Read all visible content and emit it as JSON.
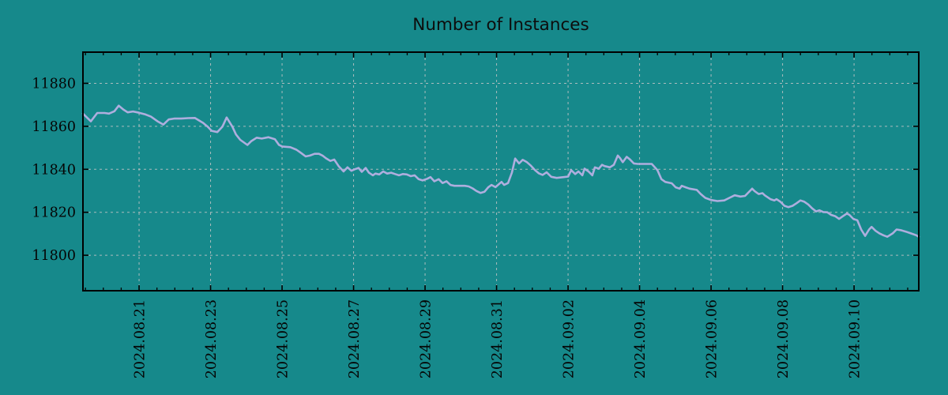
{
  "chart_data": {
    "type": "line",
    "title": "Number of Instances",
    "background_color": "#16898b",
    "line_color": "#aeaede",
    "grid_color": "#c6c6c6",
    "axis_color": "#000000",
    "text_color": "#050505",
    "legend": "none",
    "grid": "dashed, both axes",
    "x_axis": {
      "tick_labels": [
        "2024.08.21",
        "2024.08.23",
        "2024.08.25",
        "2024.08.27",
        "2024.08.29",
        "2024.08.31",
        "2024.09.02",
        "2024.09.04",
        "2024.09.06",
        "2024.09.08",
        "2024.09.10"
      ],
      "tick_positions_days": [
        1.57,
        3.57,
        5.57,
        7.57,
        9.57,
        11.57,
        13.57,
        15.57,
        17.57,
        19.57,
        21.57
      ],
      "minor_tick_step_days": 0.5,
      "minor_tick_start_day": 0.07,
      "range_days": [
        0,
        23.38
      ],
      "label_rotation_deg": -90
    },
    "y_axis": {
      "ticks": [
        11800,
        11820,
        11840,
        11860,
        11880
      ],
      "range": [
        11783.5,
        11894.5
      ]
    },
    "series": [
      {
        "name": "instances",
        "points": [
          [
            0.0,
            11865.9
          ],
          [
            0.22,
            11862.3
          ],
          [
            0.4,
            11866.2
          ],
          [
            0.6,
            11866.2
          ],
          [
            0.73,
            11865.9
          ],
          [
            0.88,
            11867.0
          ],
          [
            1.0,
            11869.6
          ],
          [
            1.13,
            11867.8
          ],
          [
            1.25,
            11866.5
          ],
          [
            1.4,
            11866.9
          ],
          [
            1.57,
            11866.3
          ],
          [
            1.75,
            11865.5
          ],
          [
            1.9,
            11864.5
          ],
          [
            2.1,
            11862.2
          ],
          [
            2.25,
            11860.8
          ],
          [
            2.4,
            11863.2
          ],
          [
            2.55,
            11863.6
          ],
          [
            2.75,
            11863.6
          ],
          [
            2.95,
            11863.8
          ],
          [
            3.13,
            11863.9
          ],
          [
            3.36,
            11861.6
          ],
          [
            3.49,
            11859.8
          ],
          [
            3.6,
            11857.9
          ],
          [
            3.76,
            11857.3
          ],
          [
            3.9,
            11859.8
          ],
          [
            4.02,
            11864.1
          ],
          [
            4.18,
            11859.8
          ],
          [
            4.28,
            11856.2
          ],
          [
            4.4,
            11853.7
          ],
          [
            4.6,
            11851.3
          ],
          [
            4.71,
            11853.1
          ],
          [
            4.86,
            11854.7
          ],
          [
            5.0,
            11854.3
          ],
          [
            5.19,
            11854.9
          ],
          [
            5.37,
            11854.0
          ],
          [
            5.48,
            11851.4
          ],
          [
            5.57,
            11850.6
          ],
          [
            5.8,
            11850.3
          ],
          [
            5.97,
            11849.1
          ],
          [
            6.1,
            11847.6
          ],
          [
            6.23,
            11846.0
          ],
          [
            6.35,
            11846.4
          ],
          [
            6.48,
            11847.2
          ],
          [
            6.6,
            11847.2
          ],
          [
            6.7,
            11846.4
          ],
          [
            6.8,
            11845.1
          ],
          [
            6.92,
            11843.9
          ],
          [
            7.03,
            11844.5
          ],
          [
            7.15,
            11841.5
          ],
          [
            7.29,
            11839.0
          ],
          [
            7.4,
            11840.9
          ],
          [
            7.51,
            11839.3
          ],
          [
            7.6,
            11840.0
          ],
          [
            7.71,
            11840.6
          ],
          [
            7.8,
            11838.8
          ],
          [
            7.91,
            11840.6
          ],
          [
            8.0,
            11838.4
          ],
          [
            8.11,
            11837.2
          ],
          [
            8.18,
            11838.0
          ],
          [
            8.29,
            11837.6
          ],
          [
            8.4,
            11839.0
          ],
          [
            8.51,
            11838.0
          ],
          [
            8.62,
            11838.4
          ],
          [
            8.73,
            11837.8
          ],
          [
            8.84,
            11837.2
          ],
          [
            8.95,
            11837.8
          ],
          [
            9.06,
            11837.6
          ],
          [
            9.17,
            11836.8
          ],
          [
            9.28,
            11837.2
          ],
          [
            9.39,
            11835.4
          ],
          [
            9.5,
            11834.8
          ],
          [
            9.63,
            11835.6
          ],
          [
            9.72,
            11836.4
          ],
          [
            9.83,
            11834.4
          ],
          [
            9.95,
            11835.4
          ],
          [
            10.06,
            11833.6
          ],
          [
            10.17,
            11834.4
          ],
          [
            10.28,
            11832.7
          ],
          [
            10.39,
            11832.3
          ],
          [
            10.55,
            11832.3
          ],
          [
            10.68,
            11832.3
          ],
          [
            10.79,
            11832.0
          ],
          [
            10.9,
            11831.1
          ],
          [
            11.01,
            11829.9
          ],
          [
            11.12,
            11829.0
          ],
          [
            11.23,
            11829.5
          ],
          [
            11.34,
            11831.7
          ],
          [
            11.43,
            11832.7
          ],
          [
            11.54,
            11831.7
          ],
          [
            11.63,
            11833.0
          ],
          [
            11.71,
            11834.1
          ],
          [
            11.78,
            11832.7
          ],
          [
            11.89,
            11833.6
          ],
          [
            12.0,
            11838.5
          ],
          [
            12.09,
            11845.0
          ],
          [
            12.2,
            11842.7
          ],
          [
            12.3,
            11844.4
          ],
          [
            12.42,
            11843.3
          ],
          [
            12.53,
            11841.7
          ],
          [
            12.64,
            11839.7
          ],
          [
            12.75,
            11838.1
          ],
          [
            12.86,
            11837.4
          ],
          [
            12.97,
            11838.6
          ],
          [
            13.1,
            11836.5
          ],
          [
            13.25,
            11836.0
          ],
          [
            13.42,
            11836.3
          ],
          [
            13.57,
            11836.6
          ],
          [
            13.66,
            11839.6
          ],
          [
            13.77,
            11837.8
          ],
          [
            13.86,
            11839.0
          ],
          [
            13.97,
            11837.2
          ],
          [
            14.03,
            11840.3
          ],
          [
            14.14,
            11839.0
          ],
          [
            14.25,
            11837.2
          ],
          [
            14.32,
            11840.9
          ],
          [
            14.43,
            11840.3
          ],
          [
            14.52,
            11842.1
          ],
          [
            14.59,
            11841.5
          ],
          [
            14.74,
            11840.9
          ],
          [
            14.85,
            11842.1
          ],
          [
            14.96,
            11846.4
          ],
          [
            15.03,
            11845.1
          ],
          [
            15.1,
            11843.3
          ],
          [
            15.21,
            11845.8
          ],
          [
            15.3,
            11844.6
          ],
          [
            15.41,
            11842.7
          ],
          [
            15.52,
            11842.5
          ],
          [
            15.7,
            11842.5
          ],
          [
            15.91,
            11842.5
          ],
          [
            16.07,
            11839.6
          ],
          [
            16.18,
            11835.4
          ],
          [
            16.29,
            11834.1
          ],
          [
            16.47,
            11833.5
          ],
          [
            16.58,
            11831.6
          ],
          [
            16.69,
            11831.0
          ],
          [
            16.75,
            11832.3
          ],
          [
            16.86,
            11831.6
          ],
          [
            16.97,
            11831.0
          ],
          [
            17.17,
            11830.4
          ],
          [
            17.28,
            11828.5
          ],
          [
            17.41,
            11826.7
          ],
          [
            17.57,
            11825.7
          ],
          [
            17.75,
            11825.2
          ],
          [
            17.94,
            11825.5
          ],
          [
            18.08,
            11826.7
          ],
          [
            18.23,
            11827.9
          ],
          [
            18.39,
            11827.3
          ],
          [
            18.52,
            11827.6
          ],
          [
            18.72,
            11831.0
          ],
          [
            18.79,
            11829.8
          ],
          [
            18.9,
            11828.5
          ],
          [
            19.01,
            11828.9
          ],
          [
            19.07,
            11827.9
          ],
          [
            19.23,
            11826.1
          ],
          [
            19.34,
            11825.5
          ],
          [
            19.4,
            11826.1
          ],
          [
            19.51,
            11824.9
          ],
          [
            19.62,
            11823.0
          ],
          [
            19.73,
            11822.4
          ],
          [
            19.85,
            11823.0
          ],
          [
            19.96,
            11824.2
          ],
          [
            20.07,
            11825.5
          ],
          [
            20.18,
            11824.9
          ],
          [
            20.29,
            11823.6
          ],
          [
            20.4,
            11821.8
          ],
          [
            20.51,
            11820.4
          ],
          [
            20.6,
            11820.9
          ],
          [
            20.71,
            11820.1
          ],
          [
            20.82,
            11820.0
          ],
          [
            20.93,
            11818.8
          ],
          [
            21.04,
            11818.2
          ],
          [
            21.15,
            11816.9
          ],
          [
            21.26,
            11818.2
          ],
          [
            21.37,
            11819.4
          ],
          [
            21.44,
            11818.8
          ],
          [
            21.55,
            11816.9
          ],
          [
            21.66,
            11816.3
          ],
          [
            21.77,
            11812.0
          ],
          [
            21.88,
            11809.0
          ],
          [
            21.99,
            11812.0
          ],
          [
            22.06,
            11813.2
          ],
          [
            22.17,
            11811.4
          ],
          [
            22.28,
            11810.2
          ],
          [
            22.39,
            11809.3
          ],
          [
            22.5,
            11808.6
          ],
          [
            22.65,
            11810.2
          ],
          [
            22.76,
            11812.0
          ],
          [
            22.87,
            11811.7
          ],
          [
            23.02,
            11811.0
          ],
          [
            23.16,
            11810.2
          ],
          [
            23.31,
            11809.3
          ],
          [
            23.38,
            11808.6
          ]
        ]
      }
    ]
  }
}
